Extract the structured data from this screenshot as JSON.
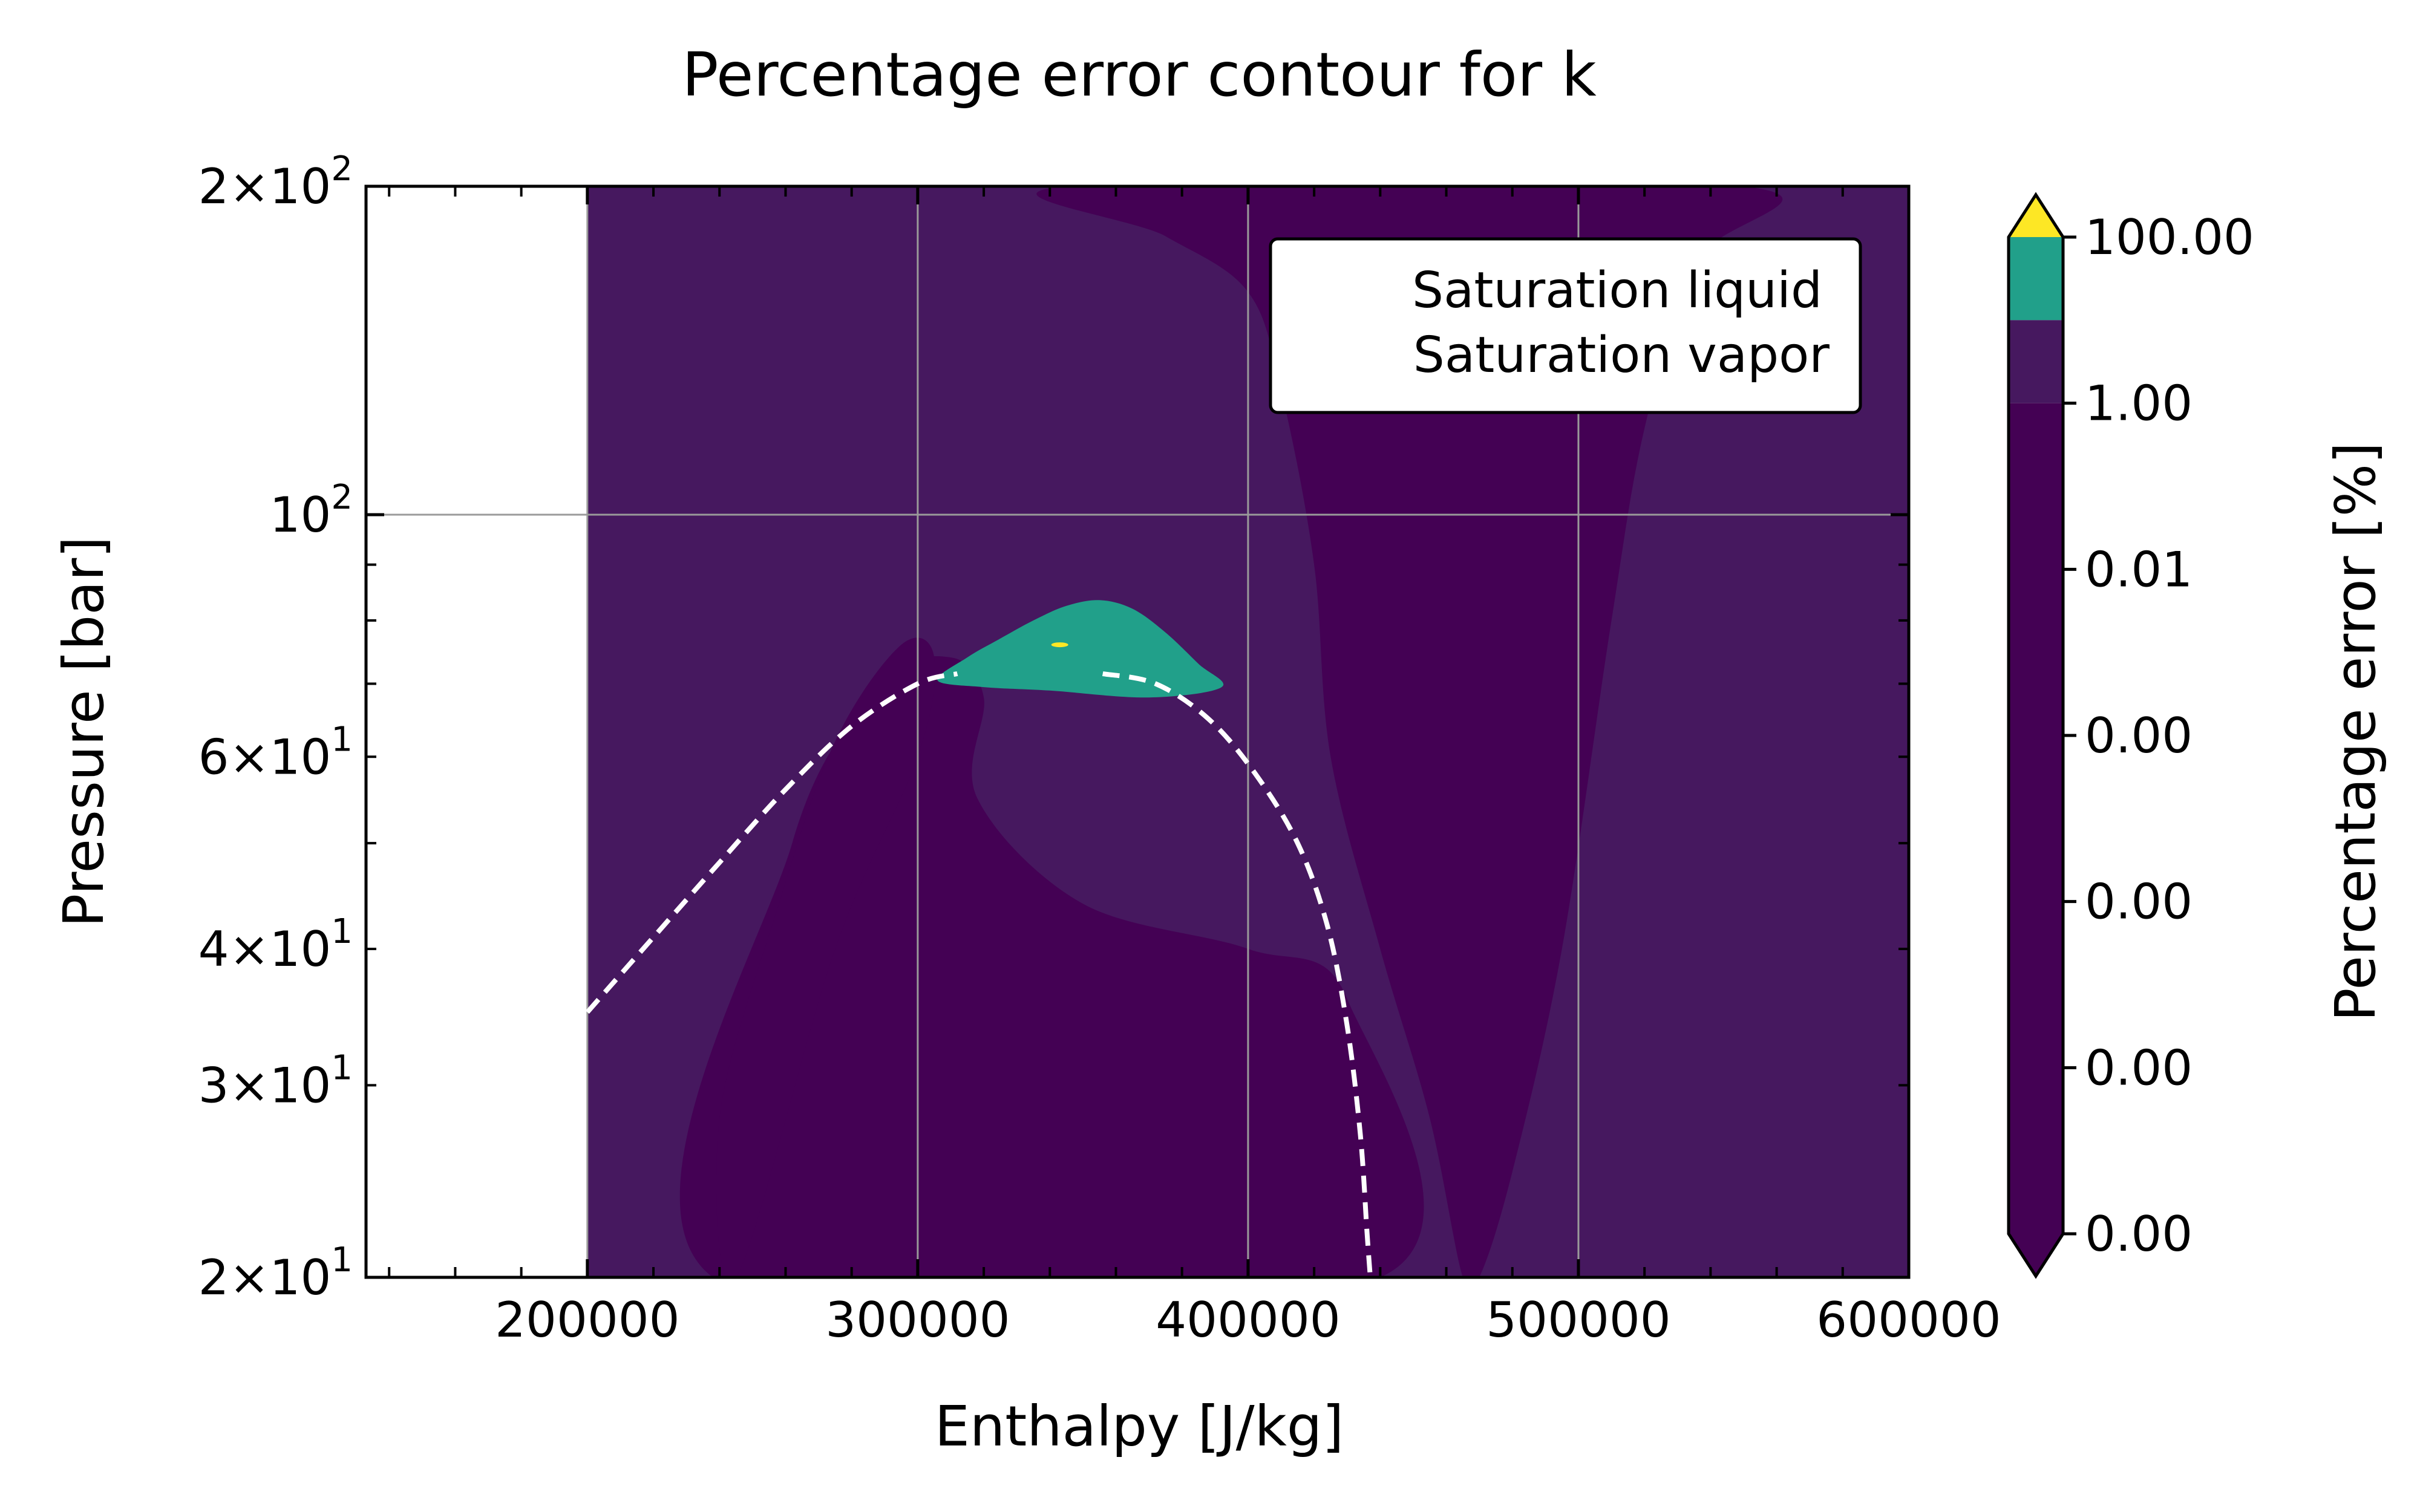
{
  "chart_data": {
    "type": "contour",
    "title": "Percentage error contour for k",
    "xlabel": "Enthalpy [J/kg]",
    "ylabel": "Pressure [bar]",
    "xlim": [
      133000,
      600000
    ],
    "ylim": [
      20,
      200
    ],
    "yscale": "log",
    "grid": true,
    "x_ticks": [
      200000,
      300000,
      400000,
      500000,
      600000
    ],
    "x_tick_labels": [
      "200000",
      "300000",
      "400000",
      "500000",
      "600000"
    ],
    "y_ticks": [
      20,
      30,
      40,
      60,
      100,
      200
    ],
    "y_tick_labels": [
      {
        "mantissa": "2",
        "exp": "1"
      },
      {
        "mantissa": "3",
        "exp": "1"
      },
      {
        "mantissa": "4",
        "exp": "1"
      },
      {
        "mantissa": "6",
        "exp": "1"
      },
      {
        "mantissa": "",
        "exp": "2"
      },
      {
        "mantissa": "2",
        "exp": "2"
      }
    ],
    "legend": {
      "placement": "top-right",
      "entries": [
        {
          "label": "Saturation liquid",
          "style": "dashed",
          "color": "#ffffff"
        },
        {
          "label": "Saturation vapor",
          "style": "dashed",
          "color": "#ffffff"
        }
      ]
    },
    "colorbar": {
      "label": "Percentage error [%]",
      "tick_labels": [
        "0.00",
        "0.00",
        "0.00",
        "0.00",
        "0.01",
        "1.00",
        "100.00"
      ],
      "extend": "both",
      "colors": {
        "below": "#440154",
        "levels": [
          "#440154",
          "#440154",
          "#440154",
          "#440154",
          "#440154",
          "#46185f",
          "#21a08a"
        ],
        "above": "#fde725"
      }
    },
    "contour_colors": {
      "low": "#440154",
      "mid": "#46185f",
      "high": "#21a08a",
      "max": "#fde725"
    },
    "data_region_x_min": 200000,
    "saturation_liquid": {
      "name": "Saturation liquid",
      "points": [
        [
          200000,
          35
        ],
        [
          220000,
          41
        ],
        [
          240000,
          48
        ],
        [
          260000,
          56
        ],
        [
          280000,
          64
        ],
        [
          300000,
          70
        ],
        [
          312000,
          71.5
        ]
      ]
    },
    "saturation_vapor": {
      "name": "Saturation vapor",
      "points": [
        [
          356000,
          71.5
        ],
        [
          372000,
          70
        ],
        [
          388000,
          65
        ],
        [
          402000,
          58
        ],
        [
          415000,
          50
        ],
        [
          424000,
          42
        ],
        [
          430000,
          34
        ],
        [
          434000,
          27
        ],
        [
          436000,
          22
        ],
        [
          437000,
          20
        ]
      ]
    },
    "high_error_region": {
      "points": [
        [
          306000,
          70.5
        ],
        [
          315000,
          74
        ],
        [
          325000,
          77
        ],
        [
          335000,
          80
        ],
        [
          345000,
          82.5
        ],
        [
          355000,
          83.5
        ],
        [
          365000,
          82
        ],
        [
          375000,
          78
        ],
        [
          385000,
          73
        ],
        [
          392000,
          69.5
        ],
        [
          370000,
          68
        ],
        [
          340000,
          69
        ],
        [
          320000,
          69.5
        ]
      ]
    },
    "max_error_point": [
      343000,
      76
    ]
  }
}
